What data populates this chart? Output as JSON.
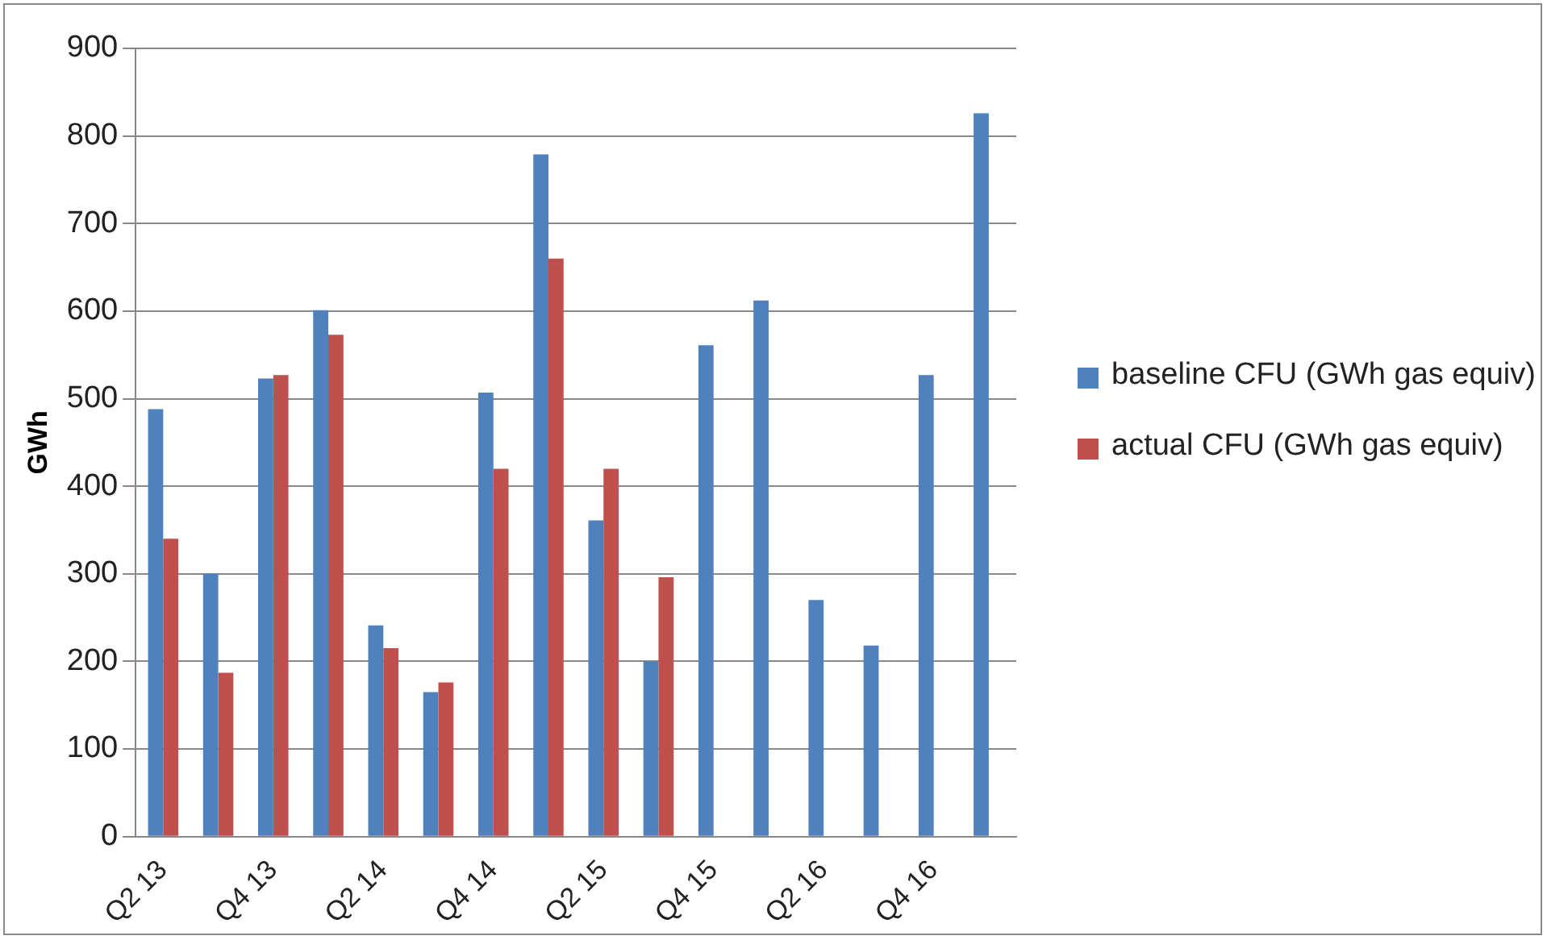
{
  "chart_data": {
    "type": "bar",
    "ylabel": "GWh",
    "categories": [
      "Q2 13",
      null,
      "Q4 13",
      null,
      "Q2 14",
      null,
      "Q4 14",
      null,
      "Q2 15",
      null,
      "Q4 15",
      null,
      "Q2 16",
      null,
      "Q4 16",
      null
    ],
    "series": [
      {
        "name": "baseline CFU (GWh gas equiv)",
        "color": "#4f81bd",
        "values": [
          488,
          300,
          523,
          601,
          241,
          165,
          507,
          779,
          361,
          200,
          561,
          612,
          270,
          218,
          527,
          826
        ]
      },
      {
        "name": "actual CFU (GWh gas equiv)",
        "color": "#c0504d",
        "values": [
          340,
          187,
          527,
          573,
          215,
          176,
          420,
          660,
          420,
          296,
          null,
          null,
          null,
          null,
          null,
          null
        ]
      }
    ],
    "ylim": [
      0,
      900
    ],
    "yticks": [
      0,
      100,
      200,
      300,
      400,
      500,
      600,
      700,
      800,
      900
    ],
    "grid": "y",
    "legend": "right"
  }
}
